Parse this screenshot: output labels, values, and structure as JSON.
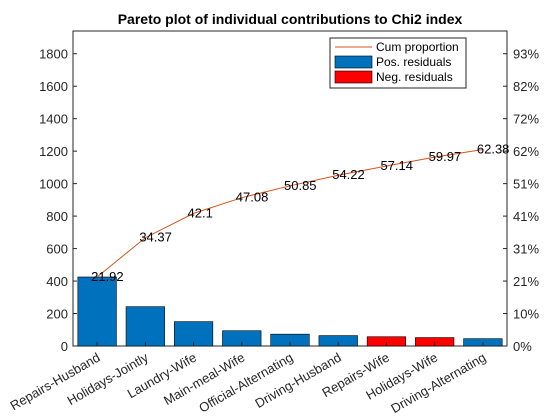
{
  "chart_data": {
    "type": "bar",
    "title": "Pareto plot of individual contributions to Chi2 index",
    "xlabel": "",
    "ylabel": "",
    "categories": [
      "Repairs-Husband",
      "Holidays-Jointly",
      "Laundry-Wife",
      "Main-meal-Wife",
      "Official-Alternating",
      "Driving-Husband",
      "Repairs-Wife",
      "Holidays-Wife",
      "Driving-Alternating"
    ],
    "values": [
      425,
      242,
      150,
      94,
      73,
      64,
      57,
      52,
      45
    ],
    "bar_sign": [
      "pos",
      "pos",
      "pos",
      "pos",
      "pos",
      "pos",
      "neg",
      "neg",
      "pos"
    ],
    "cum_proportion": [
      21.92,
      34.37,
      42.1,
      47.08,
      50.85,
      54.22,
      57.14,
      59.97,
      62.38
    ],
    "cum_labels": [
      "21.92",
      "34.37",
      "42.1",
      "47.08",
      "50.85",
      "54.22",
      "57.14",
      "59.97",
      "62.38"
    ],
    "ylim": [
      0,
      1940
    ],
    "yticks": [
      "0",
      "200",
      "400",
      "600",
      "800",
      "1000",
      "1200",
      "1400",
      "1600",
      "1800"
    ],
    "yticks_right": [
      "0%",
      "10%",
      "21%",
      "31%",
      "41%",
      "51%",
      "62%",
      "72%",
      "82%",
      "93%"
    ],
    "y2_max_percent": 100,
    "grid": false,
    "legend_position": "top-right",
    "legend": [
      {
        "label": "Cum proportion",
        "kind": "line",
        "color": "#d95319"
      },
      {
        "label": "Pos. residuals",
        "kind": "patch",
        "color": "#0072bd"
      },
      {
        "label": "Neg. residuals",
        "kind": "patch",
        "color": "#ff0000"
      }
    ],
    "colors": {
      "positive": "#0072bd",
      "negative": "#ff0000",
      "cumulative_line": "#d95319"
    }
  }
}
